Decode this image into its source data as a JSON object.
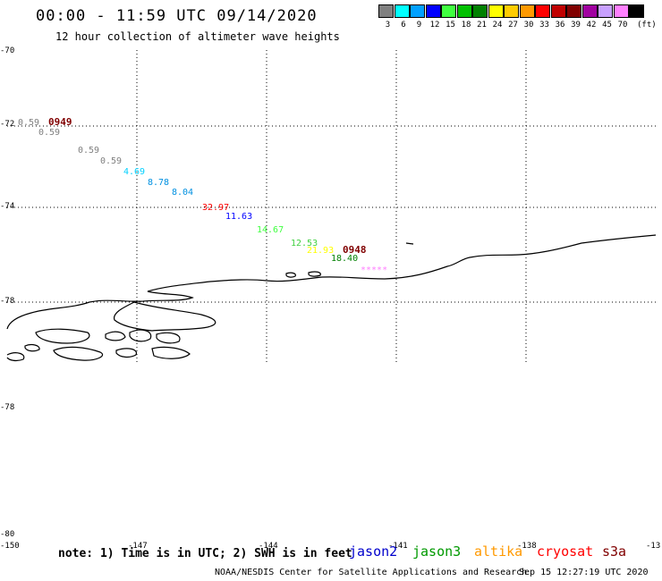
{
  "header": {
    "title": "00:00 - 11:59 UTC 09/14/2020",
    "subtitle": "12 hour collection of altimeter wave heights"
  },
  "legend": {
    "unit": "(ft)",
    "bins": [
      {
        "label": "3",
        "color": "#808080"
      },
      {
        "label": "6",
        "color": "#00ffff"
      },
      {
        "label": "9",
        "color": "#00a0ff"
      },
      {
        "label": "12",
        "color": "#0000ff"
      },
      {
        "label": "15",
        "color": "#40ff40"
      },
      {
        "label": "18",
        "color": "#00c000"
      },
      {
        "label": "21",
        "color": "#008000"
      },
      {
        "label": "24",
        "color": "#ffff00"
      },
      {
        "label": "27",
        "color": "#ffcc00"
      },
      {
        "label": "30",
        "color": "#ff9900"
      },
      {
        "label": "33",
        "color": "#ff0000"
      },
      {
        "label": "36",
        "color": "#c00000"
      },
      {
        "label": "39",
        "color": "#800000"
      },
      {
        "label": "42",
        "color": "#a000a0"
      },
      {
        "label": "45",
        "color": "#c8a0ff"
      },
      {
        "label": "70",
        "color": "#ff80ff"
      },
      {
        "label": "",
        "color": "#000000"
      }
    ]
  },
  "axes": {
    "lat_labels": [
      "-70",
      "-72",
      "-74",
      "-78",
      "-78",
      "-80"
    ],
    "lon_labels": [
      "-150",
      "-147",
      "-144",
      "-141",
      "-138",
      "-13"
    ]
  },
  "observations": [
    {
      "text": "0.59",
      "color": "#808080"
    },
    {
      "text": "0.59",
      "color": "#808080"
    },
    {
      "text": "0.59",
      "color": "#808080"
    },
    {
      "text": "0.59",
      "color": "#808080"
    },
    {
      "text": "4.69",
      "color": "#00d0ff"
    },
    {
      "text": "8.78",
      "color": "#0090e0"
    },
    {
      "text": "8.04",
      "color": "#0090e0"
    },
    {
      "text": "32.97",
      "color": "#ff0000"
    },
    {
      "text": "11.63",
      "color": "#0000ff"
    },
    {
      "text": "14.67",
      "color": "#40ff40"
    },
    {
      "text": "12.53",
      "color": "#40d040"
    },
    {
      "text": "21.93",
      "color": "#ffff00"
    },
    {
      "text": "18.40",
      "color": "#008000"
    },
    {
      "text": "*****",
      "color": "#ff80ff"
    }
  ],
  "passes": [
    {
      "text": "0949",
      "color": "#800000"
    },
    {
      "text": "0948",
      "color": "#800000"
    }
  ],
  "footer": {
    "note": "note: 1) Time is in UTC; 2) SWH is in feet",
    "satellites": [
      {
        "name": "jason2",
        "color": "#0000cc"
      },
      {
        "name": "jason3",
        "color": "#009900"
      },
      {
        "name": "altika",
        "color": "#ff9900"
      },
      {
        "name": "cryosat",
        "color": "#ff0000"
      },
      {
        "name": "s3a",
        "color": "#800000"
      }
    ],
    "credit": "NOAA/NESDIS Center for Satellite Applications and Research",
    "generated": "Sep 15 12:27:19 UTC 2020"
  }
}
